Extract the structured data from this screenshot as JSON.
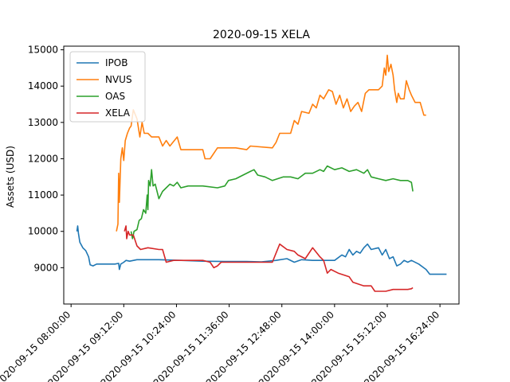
{
  "chart_data": {
    "type": "line",
    "title": "2020-09-15 XELA",
    "xlabel": "",
    "ylabel": "Assets (USD)",
    "xlim": [
      "2020-09-15 07:50",
      "2020-09-15 16:50"
    ],
    "ylim": [
      8000,
      15100
    ],
    "x_ticks": [
      "2020-09-15 08:00:00",
      "2020-09-15 09:12:00",
      "2020-09-15 10:24:00",
      "2020-09-15 11:36:00",
      "2020-09-15 12:48:00",
      "2020-09-15 14:00:00",
      "2020-09-15 15:12:00",
      "2020-09-15 16:24:00"
    ],
    "y_ticks": [
      9000,
      10000,
      11000,
      12000,
      13000,
      14000,
      15000
    ],
    "grid": false,
    "legend": "upper-left",
    "series": [
      {
        "name": "IPOB",
        "color": "#1f77b4",
        "points": [
          [
            "08:08",
            10000
          ],
          [
            "08:09",
            10150
          ],
          [
            "08:10",
            9950
          ],
          [
            "08:12",
            9700
          ],
          [
            "08:16",
            9550
          ],
          [
            "08:20",
            9470
          ],
          [
            "08:24",
            9300
          ],
          [
            "08:26",
            9080
          ],
          [
            "08:30",
            9050
          ],
          [
            "08:35",
            9100
          ],
          [
            "08:50",
            9100
          ],
          [
            "09:00",
            9100
          ],
          [
            "09:05",
            9120
          ],
          [
            "09:06",
            8950
          ],
          [
            "09:08",
            9100
          ],
          [
            "09:12",
            9150
          ],
          [
            "09:15",
            9200
          ],
          [
            "09:20",
            9180
          ],
          [
            "09:30",
            9220
          ],
          [
            "10:00",
            9220
          ],
          [
            "10:30",
            9200
          ],
          [
            "11:00",
            9180
          ],
          [
            "11:30",
            9170
          ],
          [
            "12:00",
            9170
          ],
          [
            "12:20",
            9160
          ],
          [
            "12:40",
            9200
          ],
          [
            "12:55",
            9250
          ],
          [
            "13:05",
            9150
          ],
          [
            "13:15",
            9220
          ],
          [
            "13:30",
            9200
          ],
          [
            "13:45",
            9200
          ],
          [
            "14:00",
            9200
          ],
          [
            "14:10",
            9350
          ],
          [
            "14:15",
            9300
          ],
          [
            "14:20",
            9500
          ],
          [
            "14:25",
            9350
          ],
          [
            "14:30",
            9450
          ],
          [
            "14:35",
            9400
          ],
          [
            "14:40",
            9550
          ],
          [
            "14:45",
            9650
          ],
          [
            "14:50",
            9500
          ],
          [
            "15:00",
            9550
          ],
          [
            "15:05",
            9350
          ],
          [
            "15:10",
            9500
          ],
          [
            "15:15",
            9250
          ],
          [
            "15:20",
            9300
          ],
          [
            "15:25",
            9050
          ],
          [
            "15:30",
            9100
          ],
          [
            "15:35",
            9200
          ],
          [
            "15:40",
            9150
          ],
          [
            "15:45",
            9200
          ],
          [
            "15:55",
            9100
          ],
          [
            "16:05",
            8950
          ],
          [
            "16:10",
            8820
          ],
          [
            "16:20",
            8820
          ],
          [
            "16:33",
            8820
          ]
        ]
      },
      {
        "name": "NVUS",
        "color": "#ff7f0e",
        "points": [
          [
            "09:02",
            10000
          ],
          [
            "09:04",
            10200
          ],
          [
            "09:05",
            11600
          ],
          [
            "09:06",
            10800
          ],
          [
            "09:08",
            12000
          ],
          [
            "09:10",
            12300
          ],
          [
            "09:12",
            11950
          ],
          [
            "09:14",
            12500
          ],
          [
            "09:17",
            12700
          ],
          [
            "09:20",
            12850
          ],
          [
            "09:22",
            12900
          ],
          [
            "09:25",
            13350
          ],
          [
            "09:30",
            13100
          ],
          [
            "09:34",
            12600
          ],
          [
            "09:37",
            13000
          ],
          [
            "09:40",
            12700
          ],
          [
            "09:45",
            12700
          ],
          [
            "09:50",
            12600
          ],
          [
            "10:00",
            12600
          ],
          [
            "10:05",
            12350
          ],
          [
            "10:10",
            12500
          ],
          [
            "10:15",
            12350
          ],
          [
            "10:25",
            12600
          ],
          [
            "10:30",
            12250
          ],
          [
            "10:45",
            12250
          ],
          [
            "11:00",
            12250
          ],
          [
            "11:03",
            12000
          ],
          [
            "11:10",
            12000
          ],
          [
            "11:20",
            12300
          ],
          [
            "11:45",
            12300
          ],
          [
            "12:00",
            12250
          ],
          [
            "12:05",
            12350
          ],
          [
            "12:35",
            12300
          ],
          [
            "12:40",
            12450
          ],
          [
            "12:45",
            12700
          ],
          [
            "13:00",
            12700
          ],
          [
            "13:05",
            13050
          ],
          [
            "13:10",
            12950
          ],
          [
            "13:15",
            13300
          ],
          [
            "13:25",
            13250
          ],
          [
            "13:30",
            13500
          ],
          [
            "13:35",
            13400
          ],
          [
            "13:40",
            13750
          ],
          [
            "13:45",
            13650
          ],
          [
            "13:52",
            13900
          ],
          [
            "13:57",
            13850
          ],
          [
            "14:02",
            13500
          ],
          [
            "14:07",
            13750
          ],
          [
            "14:12",
            13400
          ],
          [
            "14:17",
            13650
          ],
          [
            "14:22",
            13300
          ],
          [
            "14:27",
            13450
          ],
          [
            "14:32",
            13550
          ],
          [
            "14:37",
            13300
          ],
          [
            "14:42",
            13800
          ],
          [
            "14:47",
            13900
          ],
          [
            "15:00",
            13900
          ],
          [
            "15:05",
            14000
          ],
          [
            "15:08",
            14500
          ],
          [
            "15:10",
            14300
          ],
          [
            "15:12",
            14850
          ],
          [
            "15:14",
            14400
          ],
          [
            "15:17",
            14600
          ],
          [
            "15:20",
            14300
          ],
          [
            "15:22",
            13900
          ],
          [
            "15:25",
            13550
          ],
          [
            "15:27",
            13800
          ],
          [
            "15:30",
            13650
          ],
          [
            "15:35",
            13650
          ],
          [
            "15:38",
            14150
          ],
          [
            "15:42",
            13900
          ],
          [
            "15:45",
            13750
          ],
          [
            "15:50",
            13550
          ],
          [
            "15:57",
            13550
          ],
          [
            "16:02",
            13200
          ],
          [
            "16:05",
            13200
          ]
        ]
      },
      {
        "name": "OAS",
        "color": "#2ca02c",
        "points": [
          [
            "09:22",
            10000
          ],
          [
            "09:24",
            9800
          ],
          [
            "09:26",
            10000
          ],
          [
            "09:30",
            10050
          ],
          [
            "09:33",
            10300
          ],
          [
            "09:36",
            10350
          ],
          [
            "09:39",
            10600
          ],
          [
            "09:42",
            10500
          ],
          [
            "09:44",
            11000
          ],
          [
            "09:45",
            10600
          ],
          [
            "09:46",
            11400
          ],
          [
            "09:48",
            11250
          ],
          [
            "09:50",
            11700
          ],
          [
            "09:52",
            11250
          ],
          [
            "09:55",
            11300
          ],
          [
            "10:00",
            10900
          ],
          [
            "10:05",
            11100
          ],
          [
            "10:10",
            11200
          ],
          [
            "10:15",
            11300
          ],
          [
            "10:20",
            11250
          ],
          [
            "10:25",
            11350
          ],
          [
            "10:30",
            11200
          ],
          [
            "10:40",
            11250
          ],
          [
            "11:00",
            11250
          ],
          [
            "11:20",
            11200
          ],
          [
            "11:30",
            11250
          ],
          [
            "11:35",
            11400
          ],
          [
            "11:45",
            11450
          ],
          [
            "11:55",
            11550
          ],
          [
            "12:05",
            11650
          ],
          [
            "12:10",
            11700
          ],
          [
            "12:15",
            11550
          ],
          [
            "12:25",
            11500
          ],
          [
            "12:35",
            11400
          ],
          [
            "12:50",
            11500
          ],
          [
            "13:00",
            11500
          ],
          [
            "13:10",
            11450
          ],
          [
            "13:20",
            11600
          ],
          [
            "13:30",
            11600
          ],
          [
            "13:40",
            11700
          ],
          [
            "13:45",
            11650
          ],
          [
            "13:50",
            11800
          ],
          [
            "14:00",
            11700
          ],
          [
            "14:10",
            11750
          ],
          [
            "14:20",
            11650
          ],
          [
            "14:30",
            11700
          ],
          [
            "14:40",
            11600
          ],
          [
            "14:45",
            11700
          ],
          [
            "14:50",
            11500
          ],
          [
            "15:00",
            11450
          ],
          [
            "15:10",
            11400
          ],
          [
            "15:20",
            11450
          ],
          [
            "15:30",
            11400
          ],
          [
            "15:40",
            11400
          ],
          [
            "15:45",
            11350
          ],
          [
            "15:47",
            11100
          ]
        ]
      },
      {
        "name": "XELA",
        "color": "#d62728",
        "points": [
          [
            "09:13",
            10000
          ],
          [
            "09:15",
            10150
          ],
          [
            "09:16",
            9800
          ],
          [
            "09:18",
            10000
          ],
          [
            "09:20",
            9900
          ],
          [
            "09:25",
            9900
          ],
          [
            "09:30",
            9600
          ],
          [
            "09:35",
            9500
          ],
          [
            "09:45",
            9550
          ],
          [
            "10:00",
            9500
          ],
          [
            "10:05",
            9500
          ],
          [
            "10:10",
            9150
          ],
          [
            "10:20",
            9200
          ],
          [
            "10:30",
            9200
          ],
          [
            "11:00",
            9200
          ],
          [
            "11:10",
            9150
          ],
          [
            "11:15",
            9000
          ],
          [
            "11:20",
            9050
          ],
          [
            "11:25",
            9150
          ],
          [
            "11:40",
            9150
          ],
          [
            "12:00",
            9150
          ],
          [
            "12:20",
            9150
          ],
          [
            "12:35",
            9150
          ],
          [
            "12:40",
            9400
          ],
          [
            "12:45",
            9650
          ],
          [
            "12:55",
            9500
          ],
          [
            "13:05",
            9450
          ],
          [
            "13:10",
            9350
          ],
          [
            "13:20",
            9250
          ],
          [
            "13:30",
            9550
          ],
          [
            "13:40",
            9300
          ],
          [
            "13:45",
            9200
          ],
          [
            "13:50",
            8850
          ],
          [
            "13:55",
            8950
          ],
          [
            "14:05",
            8850
          ],
          [
            "14:20",
            8750
          ],
          [
            "14:25",
            8600
          ],
          [
            "14:40",
            8500
          ],
          [
            "14:50",
            8500
          ],
          [
            "14:55",
            8350
          ],
          [
            "15:10",
            8350
          ],
          [
            "15:20",
            8400
          ],
          [
            "15:40",
            8400
          ],
          [
            "15:45",
            8420
          ],
          [
            "15:47",
            8450
          ]
        ]
      }
    ]
  }
}
